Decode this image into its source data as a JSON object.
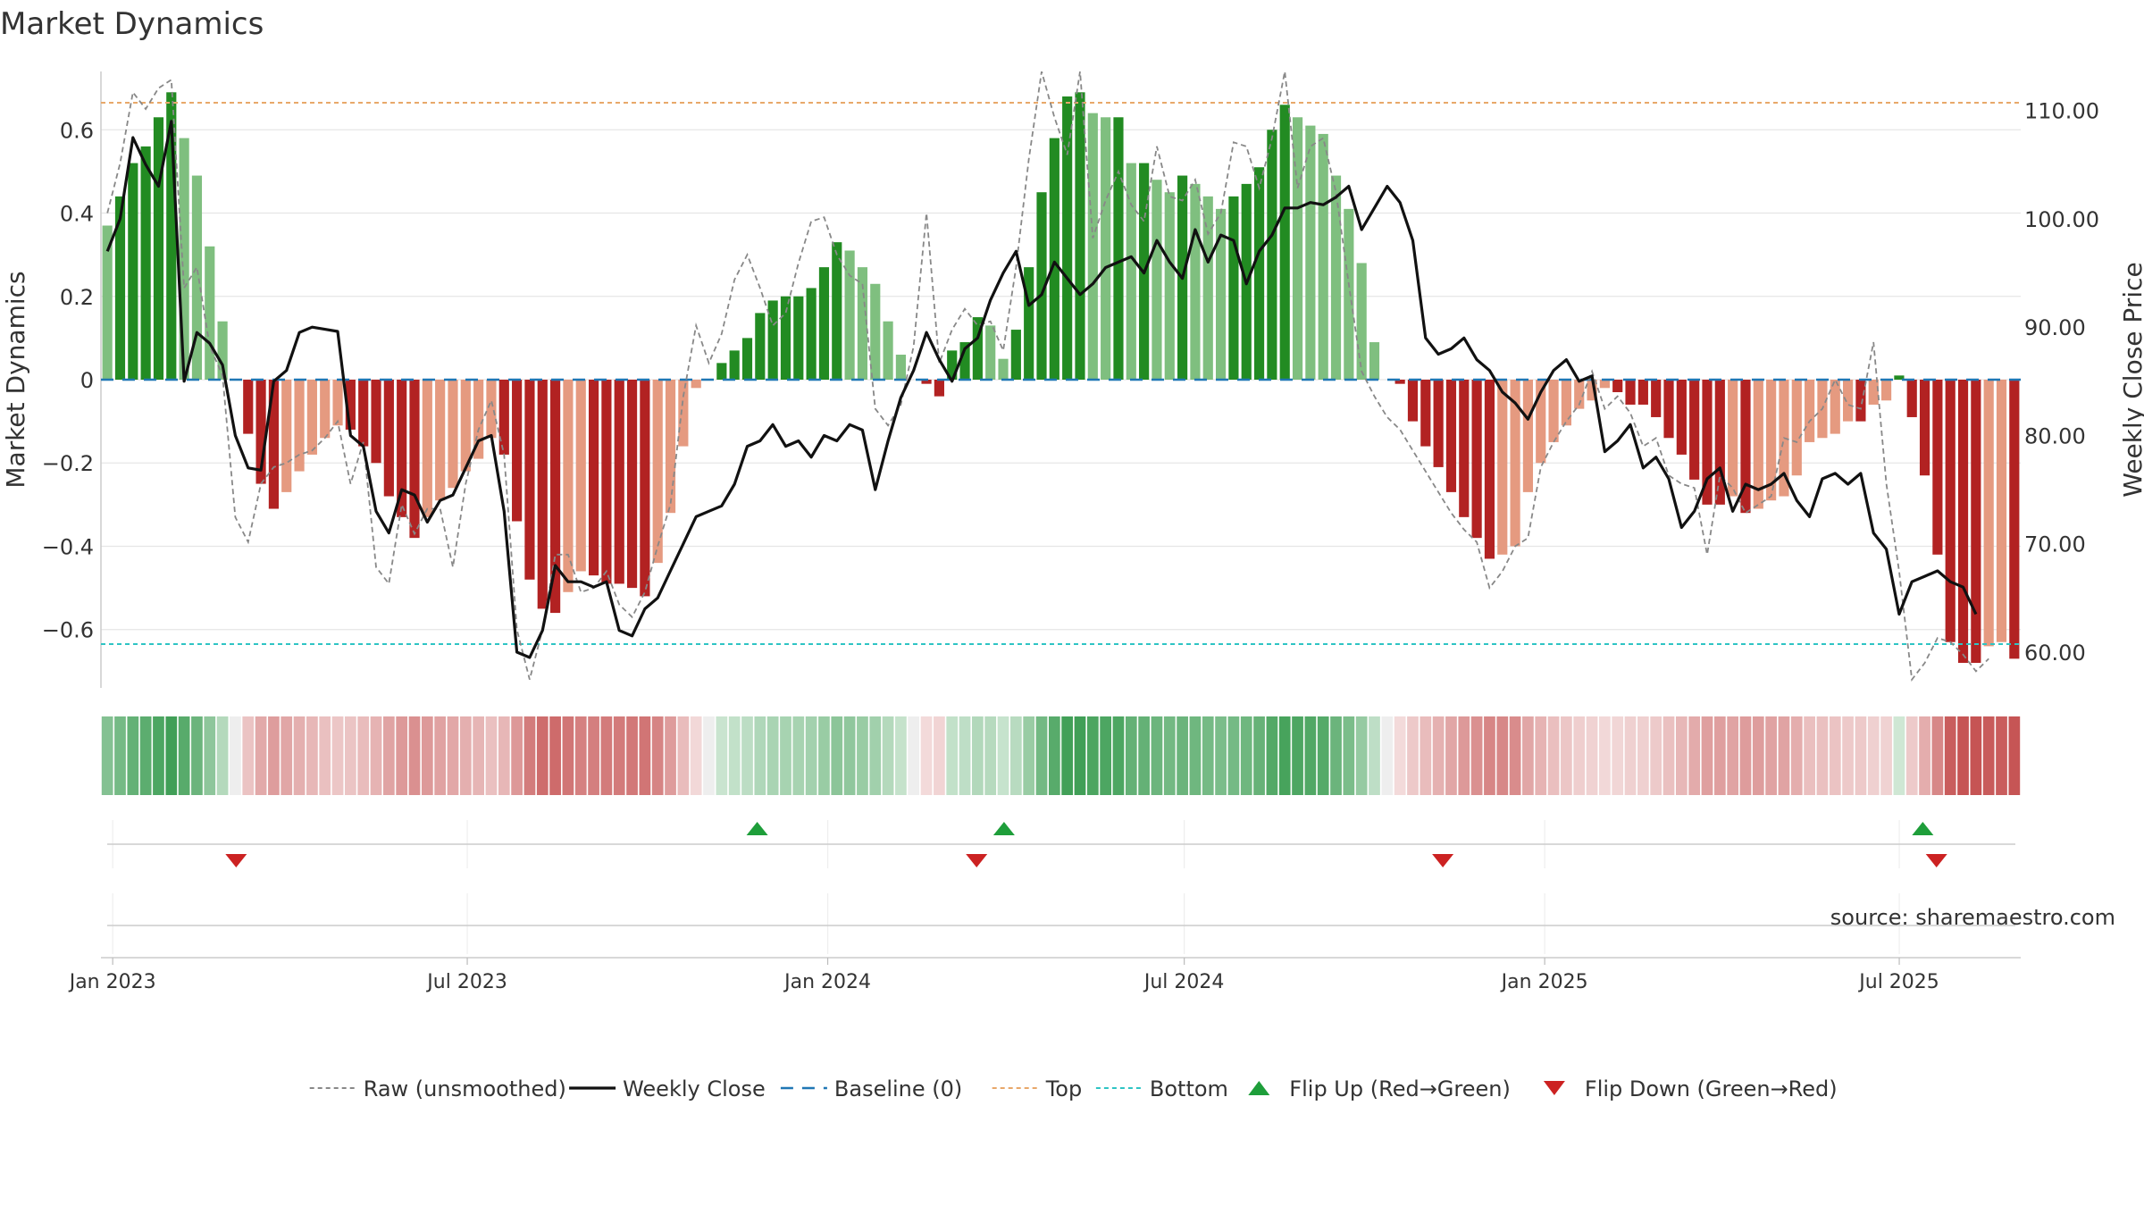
{
  "chart_data": {
    "type": "bar",
    "title": "Market Dynamics",
    "ylabel_left": "Market Dynamics",
    "ylabel_right": "Weekly Close Price",
    "source": "source: sharemaestro.com",
    "ylim_left": [
      -0.74,
      0.74
    ],
    "ylim_right": [
      56.7,
      113.6
    ],
    "left_ticks": [
      0.6,
      0.4,
      0.2,
      0,
      -0.2,
      -0.4,
      -0.6
    ],
    "left_tick_labels": [
      "0.6",
      "0.4",
      "0.2",
      "0",
      "−0.2",
      "−0.4",
      "−0.6"
    ],
    "right_ticks": [
      110,
      100,
      90,
      80,
      70,
      60
    ],
    "right_tick_labels": [
      "110.00",
      "100.00",
      "90.00",
      "80.00",
      "70.00",
      "60.00"
    ],
    "x_date_range": [
      "2022-12-26",
      "2025-09-01"
    ],
    "x_ticks": [
      "2023-01-01",
      "2023-07-01",
      "2024-01-01",
      "2024-07-01",
      "2025-01-01",
      "2025-07-01"
    ],
    "x_tick_labels": [
      "Jan 2023",
      "Jul 2023",
      "Jan 2024",
      "Jul 2024",
      "Jan 2025",
      "Jul 2025"
    ],
    "top_level": 0.665,
    "bottom_level": -0.635,
    "baseline": 0,
    "weekly_dynamics": [
      0.37,
      0.44,
      0.52,
      0.56,
      0.63,
      0.69,
      0.58,
      0.49,
      0.32,
      0.14,
      0.0,
      -0.13,
      -0.25,
      -0.31,
      -0.27,
      -0.22,
      -0.18,
      -0.14,
      -0.11,
      -0.12,
      -0.16,
      -0.2,
      -0.28,
      -0.33,
      -0.38,
      -0.33,
      -0.29,
      -0.26,
      -0.22,
      -0.19,
      -0.14,
      -0.18,
      -0.34,
      -0.48,
      -0.55,
      -0.56,
      -0.51,
      -0.46,
      -0.47,
      -0.49,
      -0.49,
      -0.5,
      -0.52,
      -0.44,
      -0.32,
      -0.16,
      -0.02,
      0.0,
      0.04,
      0.07,
      0.1,
      0.16,
      0.19,
      0.2,
      0.2,
      0.22,
      0.27,
      0.33,
      0.31,
      0.27,
      0.23,
      0.14,
      0.06,
      0.0,
      -0.01,
      -0.04,
      0.07,
      0.09,
      0.15,
      0.13,
      0.05,
      0.12,
      0.27,
      0.45,
      0.58,
      0.68,
      0.69,
      0.64,
      0.63,
      0.63,
      0.52,
      0.52,
      0.48,
      0.45,
      0.49,
      0.47,
      0.44,
      0.41,
      0.44,
      0.47,
      0.51,
      0.6,
      0.66,
      0.63,
      0.61,
      0.59,
      0.49,
      0.41,
      0.28,
      0.09,
      0.0,
      -0.01,
      -0.1,
      -0.16,
      -0.21,
      -0.27,
      -0.33,
      -0.38,
      -0.43,
      -0.42,
      -0.4,
      -0.27,
      -0.2,
      -0.15,
      -0.11,
      -0.07,
      -0.05,
      -0.02,
      -0.03,
      -0.06,
      -0.06,
      -0.09,
      -0.14,
      -0.18,
      -0.24,
      -0.3,
      -0.3,
      -0.28,
      -0.32,
      -0.31,
      -0.29,
      -0.28,
      -0.23,
      -0.15,
      -0.14,
      -0.13,
      -0.1,
      -0.1,
      -0.06,
      -0.05,
      0.01,
      -0.09,
      -0.23,
      -0.42,
      -0.63,
      -0.68,
      -0.68,
      -0.64,
      -0.63,
      -0.67
    ],
    "weekly_close": [
      97.0,
      100.0,
      107.5,
      105.0,
      103.0,
      109.0,
      85.0,
      89.5,
      88.5,
      86.5,
      80.0,
      77.0,
      76.8,
      85.0,
      86.0,
      89.5,
      90.0,
      89.8,
      89.6,
      80.0,
      79.0,
      73.0,
      71.0,
      75.0,
      74.5,
      72.0,
      74.0,
      74.5,
      77.0,
      79.5,
      80.0,
      73.0,
      60.0,
      59.5,
      62.0,
      68.0,
      66.5,
      66.5,
      66.0,
      66.5,
      62.0,
      61.5,
      64.0,
      65.0,
      67.5,
      70.0,
      72.5,
      73.0,
      73.5,
      75.5,
      79.0,
      79.5,
      81.0,
      79.0,
      79.5,
      78.0,
      80.0,
      79.5,
      81.0,
      80.5,
      75.0,
      79.5,
      83.5,
      86.0,
      89.5,
      87.0,
      85.0,
      88.0,
      89.0,
      92.5,
      95.0,
      97.0,
      92.0,
      93.0,
      96.0,
      94.5,
      93.0,
      94.0,
      95.5,
      96.0,
      96.5,
      95.0,
      98.0,
      96.0,
      94.5,
      99.0,
      96.0,
      98.5,
      98.0,
      94.0,
      97.0,
      98.5,
      101.0,
      101.0,
      101.5,
      101.3,
      102.0,
      103.0,
      99.0,
      101.0,
      103.0,
      101.5,
      98.0,
      89.0,
      87.5,
      88.0,
      89.0,
      87.0,
      86.0,
      84.0,
      83.0,
      81.5,
      84.0,
      86.0,
      87.0,
      85.0,
      85.5,
      78.5,
      79.5,
      81.0,
      77.0,
      78.0,
      76.0,
      71.5,
      73.0,
      76.0,
      77.0,
      73.0,
      75.5,
      75.0,
      75.5,
      76.5,
      74.0,
      72.5,
      76.0,
      76.5,
      75.5,
      76.5,
      71.0,
      69.5,
      63.5,
      66.5,
      67.0,
      67.5,
      66.5,
      66.0,
      63.5
    ],
    "weekly_raw": [
      0.4,
      0.52,
      0.69,
      0.65,
      0.7,
      0.72,
      0.22,
      0.27,
      0.08,
      0.01,
      -0.33,
      -0.39,
      -0.25,
      -0.21,
      -0.2,
      -0.18,
      -0.17,
      -0.14,
      -0.1,
      -0.25,
      -0.15,
      -0.45,
      -0.49,
      -0.3,
      -0.37,
      -0.31,
      -0.31,
      -0.45,
      -0.25,
      -0.12,
      -0.05,
      -0.18,
      -0.6,
      -0.72,
      -0.6,
      -0.42,
      -0.42,
      -0.51,
      -0.5,
      -0.46,
      -0.54,
      -0.57,
      -0.51,
      -0.4,
      -0.3,
      -0.04,
      0.13,
      0.04,
      0.11,
      0.24,
      0.3,
      0.22,
      0.13,
      0.16,
      0.28,
      0.38,
      0.39,
      0.3,
      0.25,
      0.23,
      -0.07,
      -0.11,
      -0.06,
      0.08,
      0.4,
      0.04,
      0.12,
      0.17,
      0.13,
      0.14,
      0.07,
      0.27,
      0.53,
      0.74,
      0.63,
      0.54,
      0.74,
      0.34,
      0.43,
      0.5,
      0.42,
      0.38,
      0.56,
      0.44,
      0.43,
      0.48,
      0.35,
      0.4,
      0.57,
      0.56,
      0.46,
      0.58,
      0.74,
      0.46,
      0.56,
      0.58,
      0.45,
      0.23,
      0.02,
      -0.04,
      -0.09,
      -0.12,
      -0.17,
      -0.22,
      -0.27,
      -0.32,
      -0.36,
      -0.39,
      -0.5,
      -0.46,
      -0.4,
      -0.38,
      -0.21,
      -0.15,
      -0.1,
      -0.06,
      0.02,
      -0.07,
      -0.04,
      -0.08,
      -0.16,
      -0.14,
      -0.23,
      -0.25,
      -0.26,
      -0.42,
      -0.23,
      -0.26,
      -0.32,
      -0.3,
      -0.28,
      -0.14,
      -0.15,
      -0.1,
      -0.07,
      0.0,
      -0.06,
      -0.07,
      0.09,
      -0.25,
      -0.46,
      -0.72,
      -0.68,
      -0.62,
      -0.63,
      -0.66,
      -0.7,
      -0.67
    ],
    "flips": [
      {
        "type": "down",
        "date": "2023-03-05"
      },
      {
        "type": "up",
        "date": "2023-11-26"
      },
      {
        "type": "down",
        "date": "2024-03-17"
      },
      {
        "type": "up",
        "date": "2024-03-31"
      },
      {
        "type": "down",
        "date": "2024-11-10"
      },
      {
        "type": "up",
        "date": "2025-07-13"
      },
      {
        "type": "down",
        "date": "2025-07-20"
      }
    ],
    "legend_position": "bottom-center",
    "legend": [
      {
        "label": "Raw (unsmoothed)",
        "kind": "line-dashed",
        "color": "#888888"
      },
      {
        "label": "Weekly Close",
        "kind": "line",
        "color": "#111111"
      },
      {
        "label": "Baseline (0)",
        "kind": "line-dashed-long",
        "color": "#1f77b4"
      },
      {
        "label": "Top",
        "kind": "line-dotted",
        "color": "#e8a86a"
      },
      {
        "label": "Bottom",
        "kind": "line-dotted",
        "color": "#2ec4c4"
      },
      {
        "label": "Flip Up (Red→Green)",
        "kind": "triangle-up",
        "color": "#1e9e3a"
      },
      {
        "label": "Flip Down (Green→Red)",
        "kind": "triangle-down",
        "color": "#cc2222"
      }
    ],
    "colors": {
      "strong_green": "#228b22",
      "light_green": "#7fbf7f",
      "strong_red": "#b22222",
      "light_red": "#e59a80",
      "top_line": "#e8a86a",
      "bottom_line": "#2ec4c4",
      "baseline": "#1f77b4",
      "price_line": "#111111",
      "raw_line": "#888888",
      "flip_up": "#1e9e3a",
      "flip_down": "#cc2222"
    }
  }
}
